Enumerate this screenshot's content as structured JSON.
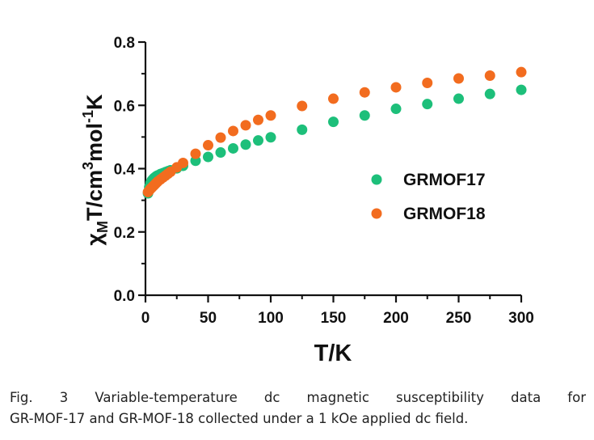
{
  "chart_data": {
    "type": "scatter",
    "title": "",
    "xlabel": "T/K",
    "ylabel": {
      "chi": "χ",
      "sub_m": "M",
      "base": "T/cm",
      "sup_3": "3",
      "mol": "mol",
      "sup_neg1": "-1",
      "end": "K"
    },
    "xlim": [
      0,
      300
    ],
    "ylim": [
      0,
      0.8
    ],
    "x_ticks": [
      "0",
      "50",
      "100",
      "150",
      "200",
      "250",
      "300"
    ],
    "x_tick_values": [
      0,
      50,
      100,
      150,
      200,
      250,
      300
    ],
    "y_ticks": [
      "0.0",
      "0.2",
      "0.4",
      "0.6",
      "0.8"
    ],
    "y_tick_values": [
      0,
      0.2,
      0.4,
      0.6,
      0.8
    ],
    "grid": false,
    "legend_position": "right",
    "series": [
      {
        "name": "GRMOF17",
        "color": "#1dbf7a",
        "x": [
          2,
          3,
          4,
          5,
          6,
          7,
          8,
          9,
          10,
          12,
          14,
          16,
          18,
          20,
          25,
          30,
          40,
          50,
          60,
          70,
          80,
          90,
          100,
          125,
          150,
          175,
          200,
          225,
          250,
          275,
          300
        ],
        "y": [
          0.322,
          0.342,
          0.354,
          0.362,
          0.367,
          0.371,
          0.374,
          0.377,
          0.379,
          0.383,
          0.386,
          0.389,
          0.392,
          0.395,
          0.401,
          0.409,
          0.425,
          0.437,
          0.451,
          0.464,
          0.476,
          0.489,
          0.499,
          0.523,
          0.548,
          0.568,
          0.589,
          0.604,
          0.621,
          0.636,
          0.649
        ]
      },
      {
        "name": "GRMOF18",
        "color": "#f26c1f",
        "x": [
          2,
          3,
          4,
          5,
          6,
          7,
          8,
          9,
          10,
          12,
          14,
          16,
          18,
          20,
          25,
          30,
          40,
          50,
          60,
          70,
          80,
          90,
          100,
          125,
          150,
          175,
          200,
          225,
          250,
          275,
          300
        ],
        "y": [
          0.326,
          0.331,
          0.336,
          0.34,
          0.344,
          0.348,
          0.352,
          0.356,
          0.36,
          0.366,
          0.372,
          0.378,
          0.384,
          0.39,
          0.404,
          0.418,
          0.447,
          0.474,
          0.498,
          0.519,
          0.537,
          0.554,
          0.568,
          0.598,
          0.621,
          0.641,
          0.657,
          0.671,
          0.685,
          0.694,
          0.705
        ]
      }
    ]
  },
  "caption": {
    "line1": "Fig. 3  Variable-temperature  dc  magnetic  susceptibility  data  for",
    "line2": "GR-MOF-17 and GR-MOF-18 collected under a 1 kOe applied dc field."
  }
}
